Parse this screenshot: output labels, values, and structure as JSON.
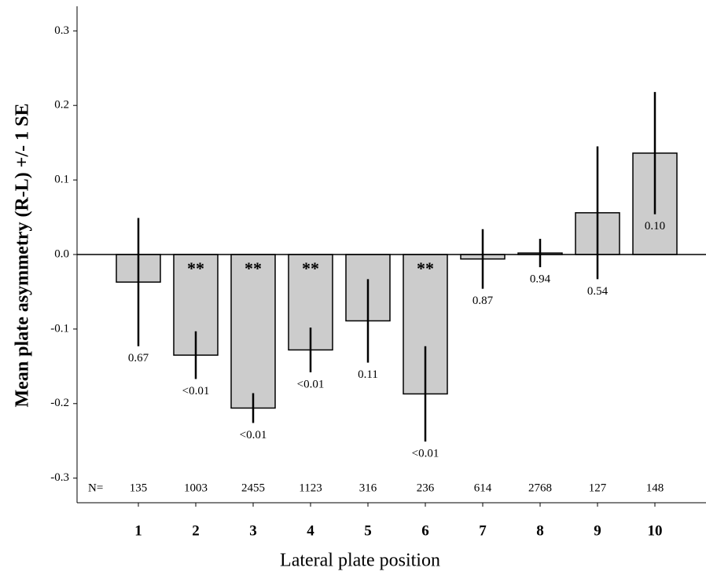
{
  "chart_data": {
    "type": "bar",
    "x_label": "Lateral plate position",
    "y_label": "Mean plate asymmetry (R-L) +/- 1 SE",
    "categories": [
      "1",
      "2",
      "3",
      "4",
      "5",
      "6",
      "7",
      "8",
      "9",
      "10"
    ],
    "values": [
      -0.037,
      -0.135,
      -0.206,
      -0.128,
      -0.089,
      -0.187,
      -0.006,
      0.002,
      0.056,
      0.136
    ],
    "errors": [
      0.086,
      0.032,
      0.02,
      0.03,
      0.056,
      0.064,
      0.04,
      0.019,
      0.089,
      0.082
    ],
    "p_labels": [
      "0.67",
      "<0.01",
      "<0.01",
      "<0.01",
      "0.11",
      "<0.01",
      "0.87",
      "0.94",
      "0.54",
      "0.10"
    ],
    "significance": [
      null,
      "**",
      "**",
      "**",
      null,
      "**",
      null,
      null,
      null,
      null
    ],
    "n_label": "N=",
    "n": [
      135,
      1003,
      2455,
      1123,
      316,
      236,
      614,
      2768,
      127,
      148
    ],
    "color": "#cccccc",
    "ylim": [
      -0.333,
      0.333
    ],
    "yticks": [
      -0.3,
      -0.2,
      -0.1,
      {
        "value": 0,
        "label": "0.0"
      },
      0.1,
      0.2,
      0.3
    ]
  }
}
